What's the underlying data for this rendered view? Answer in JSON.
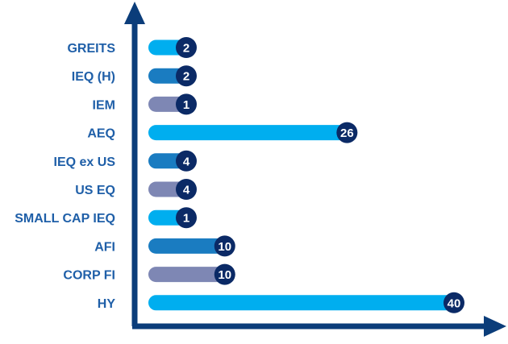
{
  "colors": {
    "axis": "#0b3d7a",
    "label_text": "#1f5fa8",
    "badge_fill": "#0b2a66",
    "badge_text": "#ffffff",
    "palette": [
      "#00aeef",
      "#1a7cc1",
      "#7e87b4"
    ]
  },
  "chart_data": {
    "type": "bar",
    "orientation": "horizontal",
    "categories": [
      "GREITS",
      "IEQ (H)",
      "IEM",
      "AEQ",
      "IEQ ex US",
      "US EQ",
      "SMALL CAP IEQ",
      "AFI",
      "CORP FI",
      "HY"
    ],
    "values": [
      2,
      2,
      1,
      26,
      4,
      4,
      1,
      10,
      10,
      40
    ],
    "bar_colors": [
      "#00aeef",
      "#1a7cc1",
      "#7e87b4",
      "#00aeef",
      "#1a7cc1",
      "#7e87b4",
      "#00aeef",
      "#1a7cc1",
      "#7e87b4",
      "#00aeef"
    ],
    "title": "",
    "xlabel": "",
    "ylabel": "",
    "xlim": [
      0,
      40
    ],
    "grid": false,
    "legend": "none",
    "data_labels": true
  }
}
